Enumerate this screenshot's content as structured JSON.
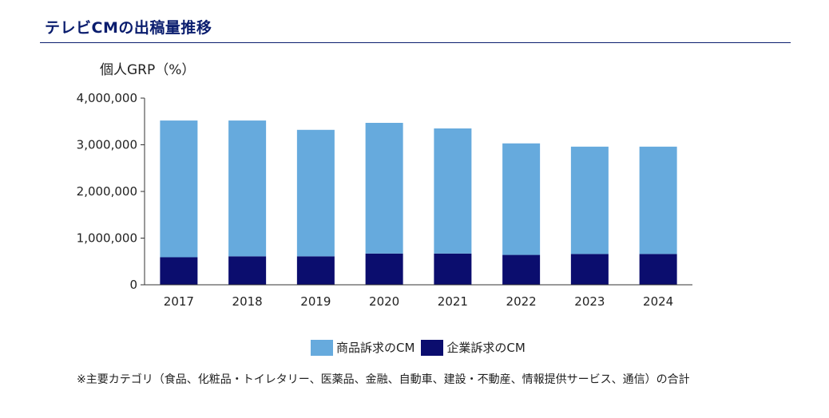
{
  "header": {
    "title": "テレビCMの出稿量推移"
  },
  "note": "※主要カテゴリ（食品、化粧品・トイレタリー、医薬品、金融、自動車、建設・不動産、情報提供サービス、通信）の合計",
  "colors": {
    "title": "#0a1d6e",
    "product": "#66aadd",
    "corporate": "#0b0d6e"
  },
  "chart_data": {
    "type": "bar",
    "stacked": true,
    "ylabel": "個人GRP（%）",
    "xlabel": "",
    "ylim": [
      0,
      4000000
    ],
    "yticks": [
      0,
      1000000,
      2000000,
      3000000,
      4000000
    ],
    "ytick_labels": [
      "0",
      "1,000,000",
      "2,000,000",
      "3,000,000",
      "4,000,000"
    ],
    "categories": [
      "2017",
      "2018",
      "2019",
      "2020",
      "2021",
      "2022",
      "2023",
      "2024"
    ],
    "series": [
      {
        "name": "企業訴求のCM",
        "color": "#0b0d6e",
        "values": [
          590000,
          610000,
          610000,
          670000,
          670000,
          640000,
          660000,
          660000
        ]
      },
      {
        "name": "商品訴求のCM",
        "color": "#66aadd",
        "values": [
          2930000,
          2910000,
          2710000,
          2800000,
          2680000,
          2390000,
          2300000,
          2300000
        ]
      }
    ],
    "grid": false,
    "legend_position": "bottom"
  }
}
